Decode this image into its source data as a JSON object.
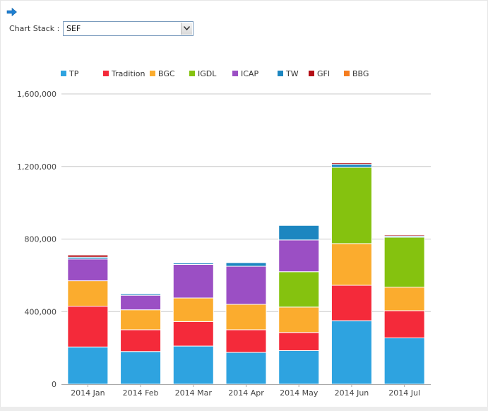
{
  "controls": {
    "stack_label": "Chart Stack :",
    "stack_value": "SEF",
    "arrow_icon": "arrow-right-icon"
  },
  "colors": {
    "TP": "#2ea3e0",
    "Tradition": "#f42a3a",
    "BGC": "#fbac2e",
    "IGDL": "#85c20f",
    "ICAP": "#9b4fc4",
    "TW": "#1c86c0",
    "GFI": "#b40e16",
    "BBG": "#f57d1f"
  },
  "chart_data": {
    "type": "bar",
    "stacked": true,
    "categories": [
      "2014 Jan",
      "2014 Feb",
      "2014 Mar",
      "2014 Apr",
      "2014 May",
      "2014 Jun",
      "2014 Jul"
    ],
    "series": [
      {
        "name": "TP",
        "values": [
          205000,
          180000,
          210000,
          175000,
          185000,
          350000,
          255000
        ]
      },
      {
        "name": "Tradition",
        "values": [
          225000,
          120000,
          135000,
          125000,
          100000,
          195000,
          150000
        ]
      },
      {
        "name": "BGC",
        "values": [
          140000,
          110000,
          130000,
          140000,
          140000,
          230000,
          130000
        ]
      },
      {
        "name": "IGDL",
        "values": [
          0,
          0,
          0,
          0,
          195000,
          420000,
          275000
        ]
      },
      {
        "name": "ICAP",
        "values": [
          120000,
          80000,
          185000,
          210000,
          175000,
          0,
          0
        ]
      },
      {
        "name": "TW",
        "values": [
          10000,
          8000,
          8000,
          20000,
          80000,
          17000,
          6000
        ]
      },
      {
        "name": "GFI",
        "values": [
          12000,
          0,
          0,
          0,
          0,
          8000,
          6000
        ]
      },
      {
        "name": "BBG",
        "values": [
          0,
          0,
          0,
          0,
          0,
          3000,
          0
        ]
      }
    ],
    "ylim": [
      0,
      1600000
    ],
    "yticks": [
      0,
      400000,
      800000,
      1200000,
      1600000
    ],
    "ytick_labels": [
      "0",
      "400,000",
      "800,000",
      "1,200,000",
      "1,600,000"
    ],
    "title": "",
    "xlabel": "",
    "ylabel": "",
    "grid": true,
    "legend_position": "top"
  }
}
